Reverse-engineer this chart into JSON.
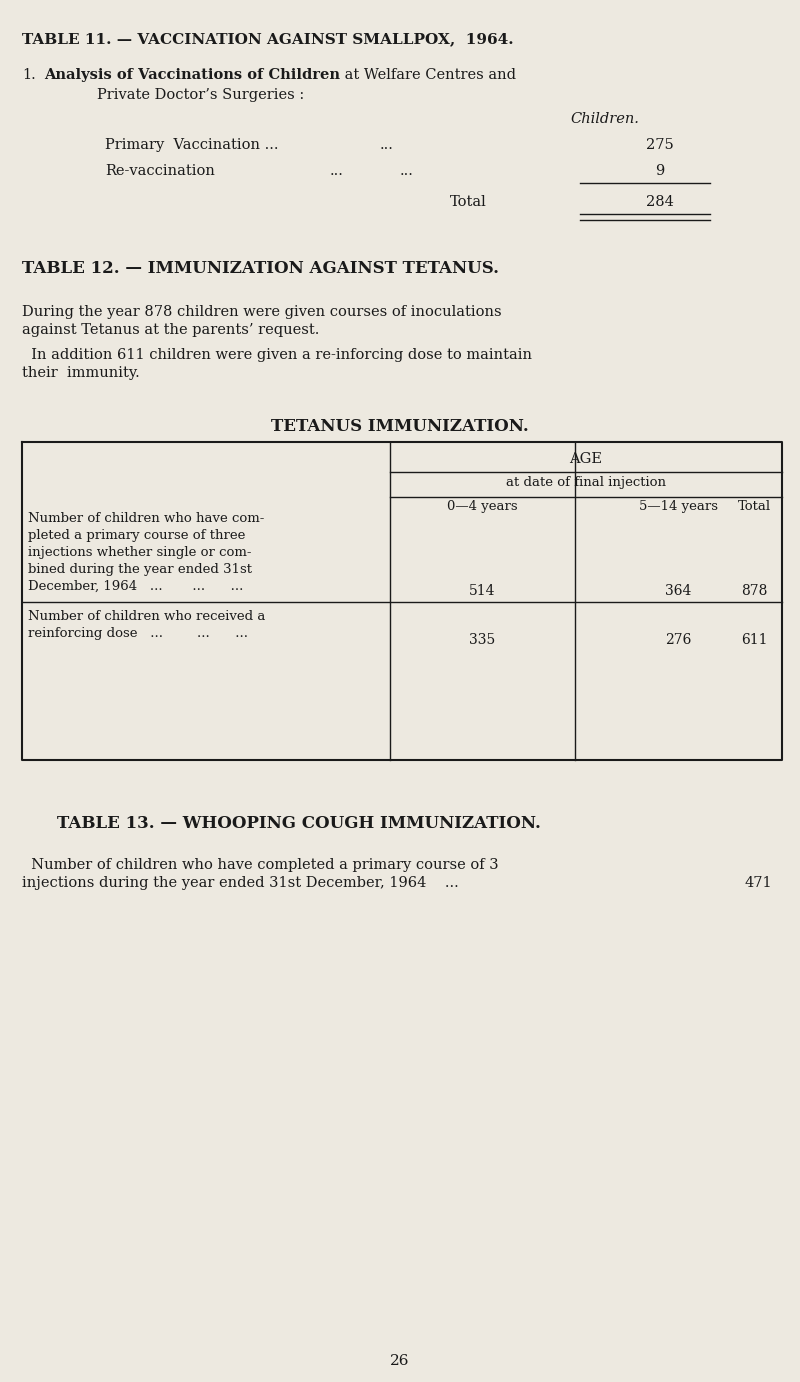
{
  "bg_color": "#ede9e0",
  "text_color": "#1a1a1a",
  "page_width": 8.0,
  "page_height": 13.82,
  "dpi": 100,
  "table11_title": "TABLE 11. — VACCINATION AGAINST SMALLPOX,  1964.",
  "table11_num": "1.",
  "table11_bold": "Analysis of Vaccinations of Children",
  "table11_normal_end": " at Welfare Centres and",
  "table11_line2": "Private Doctor’s Surgeries :",
  "table11_col_header": "Children.",
  "table11_row1_label": "Primary  Vaccination ...",
  "table11_row1_dots": "...",
  "table11_row1_val": "275",
  "table11_row2_label": "Re-vaccination",
  "table11_row2_dots1": "...",
  "table11_row2_dots2": "...",
  "table11_row2_val": "9",
  "table11_total_label": "Total",
  "table11_total_val": "284",
  "table12_title": "TABLE 12. — IMMUNIZATION AGAINST TETANUS.",
  "table12_para1a": "During the year 878 children were given courses of inoculations",
  "table12_para1b": "against Tetanus at the parents’ request.",
  "table12_para2a": "  In addition 611 children were given a re-inforcing dose to maintain",
  "table12_para2b": "their  immunity.",
  "tetanus_heading": "TETANUS IMMUNIZATION.",
  "tet_age_main": "AGE",
  "tet_age_sub": "at date of final injection",
  "tet_col1": "0—4 years",
  "tet_col2": "5—14 years",
  "tet_col3": "Total",
  "tet_row1_label_lines": [
    "Number of children who have com-",
    "pleted a primary course of three",
    "injections whether single or com-",
    "bined during the year ended 31st",
    "December, 1964   ...       ...      ..."
  ],
  "tet_row1_v1": "514",
  "tet_row1_v2": "364",
  "tet_row1_v3": "878",
  "tet_row2_label_lines": [
    "Number of children who received a",
    "reinforcing dose   ...        ...      ..."
  ],
  "tet_row2_v1": "335",
  "tet_row2_v2": "276",
  "tet_row2_v3": "611",
  "table13_title": "TABLE 13. — WHOOPING COUGH IMMUNIZATION.",
  "table13_line1": "  Number of children who have completed a primary course of 3",
  "table13_line2": "injections during the year ended 31st December, 1964    ...",
  "table13_val": "471",
  "page_num": "26"
}
